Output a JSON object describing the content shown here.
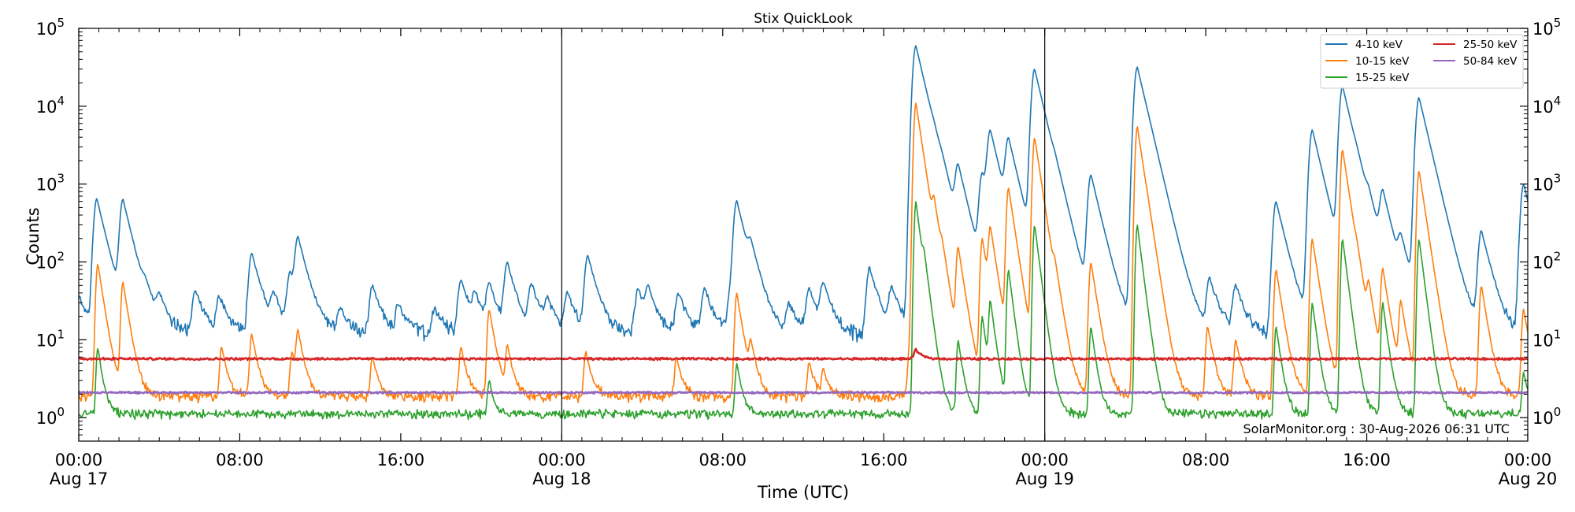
{
  "chart_data": {
    "type": "line",
    "title": "Stix QuickLook",
    "xlabel": "Time (UTC)",
    "ylabel": "Counts",
    "yscale": "log",
    "ylim": [
      0.5,
      100000
    ],
    "xlim_hours": [
      0,
      72
    ],
    "grid": false,
    "legend_position": "top-right",
    "annotation": "SolarMonitor.org : 30-Aug-2026 06:31 UTC",
    "day_dividers_hours": [
      24,
      48
    ],
    "x_ticks": [
      {
        "hour": 0,
        "time": "00:00",
        "date": "Aug 17"
      },
      {
        "hour": 8,
        "time": "08:00",
        "date": ""
      },
      {
        "hour": 16,
        "time": "16:00",
        "date": ""
      },
      {
        "hour": 24,
        "time": "00:00",
        "date": "Aug 18"
      },
      {
        "hour": 32,
        "time": "08:00",
        "date": ""
      },
      {
        "hour": 40,
        "time": "16:00",
        "date": ""
      },
      {
        "hour": 48,
        "time": "00:00",
        "date": "Aug 19"
      },
      {
        "hour": 56,
        "time": "08:00",
        "date": ""
      },
      {
        "hour": 64,
        "time": "16:00",
        "date": ""
      },
      {
        "hour": 72,
        "time": "00:00",
        "date": "Aug 20"
      }
    ],
    "y_ticks": [
      {
        "value": 1,
        "base": "10",
        "exp": "0"
      },
      {
        "value": 10,
        "base": "10",
        "exp": "1"
      },
      {
        "value": 100,
        "base": "10",
        "exp": "2"
      },
      {
        "value": 1000,
        "base": "10",
        "exp": "3"
      },
      {
        "value": 10000,
        "base": "10",
        "exp": "4"
      },
      {
        "value": 100000,
        "base": "10",
        "exp": "5"
      }
    ],
    "series": [
      {
        "name": "4-10 keV",
        "color": "#1f77b4",
        "baseline": 12,
        "peaks": [
          [
            0.05,
            35
          ],
          [
            0.9,
            650
          ],
          [
            2.2,
            620
          ],
          [
            3.3,
            30
          ],
          [
            4.0,
            32
          ],
          [
            5.8,
            45
          ],
          [
            7.0,
            35
          ],
          [
            8.6,
            130
          ],
          [
            9.7,
            35
          ],
          [
            10.5,
            70
          ],
          [
            10.9,
            190
          ],
          [
            13.0,
            25
          ],
          [
            14.6,
            50
          ],
          [
            15.9,
            28
          ],
          [
            17.7,
            25
          ],
          [
            19.0,
            60
          ],
          [
            19.7,
            35
          ],
          [
            20.4,
            50
          ],
          [
            21.3,
            95
          ],
          [
            22.5,
            50
          ],
          [
            23.3,
            30
          ],
          [
            24.3,
            40
          ],
          [
            25.3,
            120
          ],
          [
            27.8,
            45
          ],
          [
            28.3,
            40
          ],
          [
            29.8,
            40
          ],
          [
            31.1,
            45
          ],
          [
            32.4,
            40
          ],
          [
            32.7,
            600
          ],
          [
            33.4,
            100
          ],
          [
            35.3,
            28
          ],
          [
            36.3,
            45
          ],
          [
            37.0,
            50
          ],
          [
            39.3,
            85
          ],
          [
            40.4,
            45
          ],
          [
            41.3,
            35
          ],
          [
            41.6,
            60000
          ],
          [
            42.5,
            500
          ],
          [
            42.9,
            250
          ],
          [
            43.7,
            1500
          ],
          [
            44.9,
            1300
          ],
          [
            45.3,
            4500
          ],
          [
            46.2,
            3500
          ],
          [
            47.5,
            30000
          ],
          [
            48.5,
            300
          ],
          [
            50.3,
            1300
          ],
          [
            52.6,
            32000
          ],
          [
            53.1,
            120
          ],
          [
            56.2,
            60
          ],
          [
            57.5,
            50
          ],
          [
            59.5,
            600
          ],
          [
            61.3,
            5000
          ],
          [
            62.8,
            18000
          ],
          [
            63.5,
            200
          ],
          [
            64.1,
            250
          ],
          [
            64.8,
            700
          ],
          [
            65.7,
            150
          ],
          [
            66.6,
            13000
          ],
          [
            69.7,
            250
          ],
          [
            71.8,
            1000
          ]
        ],
        "width": 0.28,
        "noise": 0.18
      },
      {
        "name": "10-15 keV",
        "color": "#ff7f0e",
        "baseline": 1.9,
        "peaks": [
          [
            0.95,
            95
          ],
          [
            2.2,
            55
          ],
          [
            7.1,
            8
          ],
          [
            8.6,
            12
          ],
          [
            10.6,
            7
          ],
          [
            10.9,
            12
          ],
          [
            14.6,
            6
          ],
          [
            19.0,
            8
          ],
          [
            20.4,
            25
          ],
          [
            21.3,
            8
          ],
          [
            25.2,
            7
          ],
          [
            29.7,
            6
          ],
          [
            32.7,
            40
          ],
          [
            33.4,
            8
          ],
          [
            36.3,
            5
          ],
          [
            37.0,
            4
          ],
          [
            41.3,
            8
          ],
          [
            41.6,
            11000
          ],
          [
            42.5,
            400
          ],
          [
            42.9,
            60
          ],
          [
            43.7,
            150
          ],
          [
            44.9,
            200
          ],
          [
            45.3,
            250
          ],
          [
            46.2,
            900
          ],
          [
            47.5,
            4000
          ],
          [
            48.5,
            40
          ],
          [
            50.3,
            100
          ],
          [
            52.6,
            5500
          ],
          [
            53.1,
            30
          ],
          [
            56.1,
            15
          ],
          [
            57.5,
            10
          ],
          [
            59.5,
            80
          ],
          [
            61.3,
            200
          ],
          [
            62.8,
            2800
          ],
          [
            63.5,
            30
          ],
          [
            64.1,
            40
          ],
          [
            64.8,
            80
          ],
          [
            65.7,
            30
          ],
          [
            66.6,
            1500
          ],
          [
            69.7,
            50
          ],
          [
            71.8,
            25
          ]
        ],
        "width": 0.18,
        "noise": 0.12
      },
      {
        "name": "15-25 keV",
        "color": "#2ca02c",
        "baseline": 1.12,
        "peaks": [
          [
            0.95,
            8
          ],
          [
            20.4,
            3
          ],
          [
            32.7,
            5
          ],
          [
            41.6,
            600
          ],
          [
            42.0,
            60
          ],
          [
            43.7,
            10
          ],
          [
            44.9,
            20
          ],
          [
            45.3,
            30
          ],
          [
            46.2,
            80
          ],
          [
            47.5,
            300
          ],
          [
            50.3,
            15
          ],
          [
            52.6,
            300
          ],
          [
            59.5,
            15
          ],
          [
            61.3,
            30
          ],
          [
            62.8,
            200
          ],
          [
            64.8,
            30
          ],
          [
            66.6,
            200
          ],
          [
            71.8,
            4
          ]
        ],
        "width": 0.15,
        "noise": 0.1
      },
      {
        "name": "25-50 keV",
        "color": "#d62728",
        "baseline": 5.7,
        "peaks": [
          [
            41.6,
            7.5
          ]
        ],
        "width": 0.2,
        "noise": 0.025
      },
      {
        "name": "50-84 keV",
        "color": "#9467bd",
        "baseline": 2.1,
        "peaks": [],
        "width": 0.2,
        "noise": 0.02
      }
    ]
  }
}
